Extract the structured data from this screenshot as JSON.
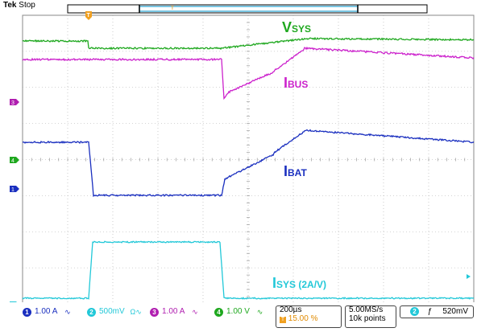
{
  "header": {
    "brand": "Tek",
    "status": "Stop"
  },
  "trace_labels": {
    "vsys": {
      "main": "V",
      "sub": "SYS",
      "color": "#1fa81f"
    },
    "ibus": {
      "main": "I",
      "sub": "BUS",
      "color": "#cc22cc"
    },
    "ibat": {
      "main": "I",
      "sub": "BAT",
      "color": "#1a2fbf"
    },
    "isys": {
      "main": "I",
      "sub": "SYS",
      "note": " (2A/V)",
      "color": "#22c8d8"
    }
  },
  "channels": [
    {
      "num": "1",
      "scale": "1.00 A",
      "coupling": "∿",
      "color": "#1a2fbf"
    },
    {
      "num": "2",
      "scale": "500mV",
      "coupling": "Ω∿",
      "color": "#22c8d8"
    },
    {
      "num": "3",
      "scale": "1.00 A",
      "coupling": "∿",
      "color": "#b01eb0"
    },
    {
      "num": "4",
      "scale": "1.00 V",
      "coupling": "∿",
      "color": "#1fa81f"
    }
  ],
  "timebase": {
    "per_div": "200µs",
    "trigger_pos": "15.00 %"
  },
  "acquisition": {
    "rate": "5.00MS/s",
    "points": "10k points"
  },
  "trigger": {
    "channel": "2",
    "slope": "ƒ",
    "level": "520mV"
  }
}
